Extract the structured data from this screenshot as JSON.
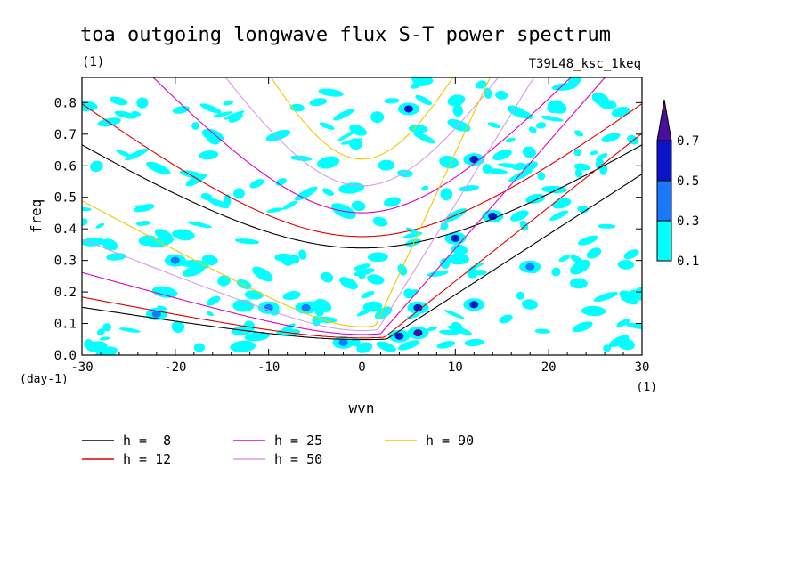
{
  "chart_data": {
    "type": "heatmap",
    "title": "toa outgoing longwave flux S-T power spectrum",
    "subtitle_left": "(1)",
    "subtitle_right": "T39L48_ksc_1keq",
    "xlabel": "wvn",
    "ylabel": "freq",
    "x_unit": "(1)",
    "y_unit": "(day-1)",
    "xlim": [
      -30,
      30
    ],
    "ylim": [
      0,
      0.88
    ],
    "xticks": [
      "-30",
      "-20",
      "-10",
      "0",
      "10",
      "20",
      "30"
    ],
    "yticks": [
      "0.0",
      "0.1",
      "0.2",
      "0.3",
      "0.4",
      "0.5",
      "0.6",
      "0.7",
      "0.8"
    ],
    "grid": false,
    "colorbar": {
      "levels": [
        "0.1",
        "0.3",
        "0.5",
        "0.7"
      ],
      "colors": [
        "#00ffff",
        "#1a78ff",
        "#0a14c8",
        "#4b0f9e"
      ]
    },
    "power_blobs": [
      {
        "x": -10,
        "y": 0.15,
        "level": 1
      },
      {
        "x": -6,
        "y": 0.15,
        "level": 1
      },
      {
        "x": 4,
        "y": 0.06,
        "level": 2
      },
      {
        "x": 6,
        "y": 0.07,
        "level": 3
      },
      {
        "x": 6,
        "y": 0.15,
        "level": 2
      },
      {
        "x": 10,
        "y": 0.37,
        "level": 2
      },
      {
        "x": 12,
        "y": 0.16,
        "level": 2
      },
      {
        "x": 5,
        "y": 0.78,
        "level": 2
      },
      {
        "x": 14,
        "y": 0.44,
        "level": 2
      },
      {
        "x": 12,
        "y": 0.62,
        "level": 2
      },
      {
        "x": -22,
        "y": 0.13,
        "level": 1
      },
      {
        "x": -20,
        "y": 0.3,
        "level": 1
      },
      {
        "x": 18,
        "y": 0.28,
        "level": 1
      },
      {
        "x": -2,
        "y": 0.04,
        "level": 1
      }
    ],
    "dispersion_curves": [
      {
        "name": "h =  8",
        "color": "#000000",
        "h": 8
      },
      {
        "name": "h = 12",
        "color": "#e00000",
        "h": 12
      },
      {
        "name": "h = 25",
        "color": "#e000c0",
        "h": 25
      },
      {
        "name": "h = 50",
        "color": "#d89ae8",
        "h": 50
      },
      {
        "name": "h = 90",
        "color": "#f0c800",
        "h": 90
      }
    ]
  }
}
